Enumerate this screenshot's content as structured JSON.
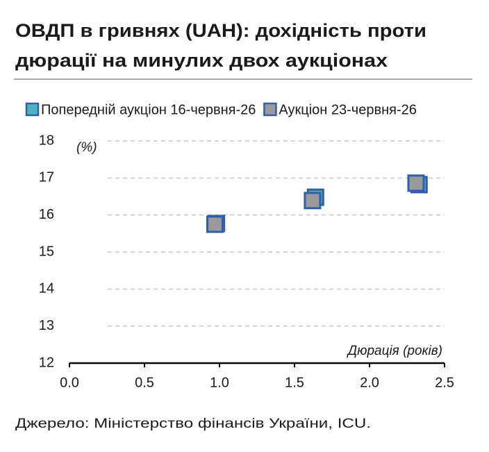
{
  "chart_data": {
    "type": "scatter",
    "title_lines": [
      "ОВДП в гривнях (UAH): дохідність проти",
      "дюрації на минулих двох аукціонах"
    ],
    "y_unit": "(%)",
    "x_label": "Дюрація (років)",
    "source": "Джерело: Міністерство фінансів України, ICU.",
    "series": [
      {
        "name": "Попередній аукціон 16-червня-26",
        "color": "#4bb3be",
        "x": [
          0.98,
          1.64,
          2.33
        ],
        "values": [
          15.77,
          16.48,
          16.82
        ]
      },
      {
        "name": "Аукціон 23-червня-26",
        "color": "#9a9a9a",
        "x": [
          0.97,
          1.62,
          2.31
        ],
        "values": [
          15.75,
          16.39,
          16.86
        ]
      }
    ],
    "xlim": [
      0,
      2.5
    ],
    "xticks": [
      {
        "value": 0,
        "label": "0.0"
      },
      {
        "value": 0.5,
        "label": "0.5"
      },
      {
        "value": 1,
        "label": "1.0"
      },
      {
        "value": 1.5,
        "label": "1.5"
      },
      {
        "value": 2,
        "label": "2.0"
      },
      {
        "value": 2.5,
        "label": "2.5"
      }
    ],
    "ylim": [
      12,
      18
    ],
    "yticks": [
      12,
      13,
      14,
      15,
      16,
      17,
      18
    ],
    "grid": true
  }
}
